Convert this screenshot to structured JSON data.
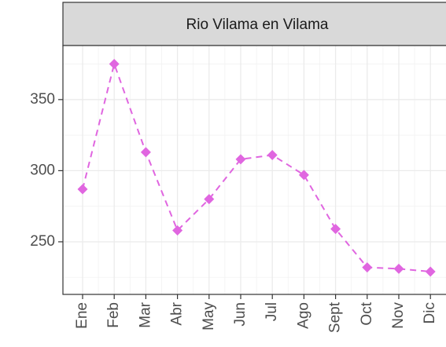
{
  "chart_data": {
    "type": "line",
    "title": "Rio Vilama en Vilama",
    "categories": [
      "Ene",
      "Feb",
      "Mar",
      "Abr",
      "May",
      "Jun",
      "Jul",
      "Ago",
      "Sept",
      "Oct",
      "Nov",
      "Dic"
    ],
    "series": [
      {
        "color": "#e066e0",
        "values": [
          287,
          375,
          313,
          258,
          280,
          308,
          311,
          297,
          259,
          232,
          231,
          229
        ]
      }
    ],
    "ylim": [
      213,
      388
    ],
    "yticks": [
      250,
      300,
      350
    ],
    "grid": true
  }
}
